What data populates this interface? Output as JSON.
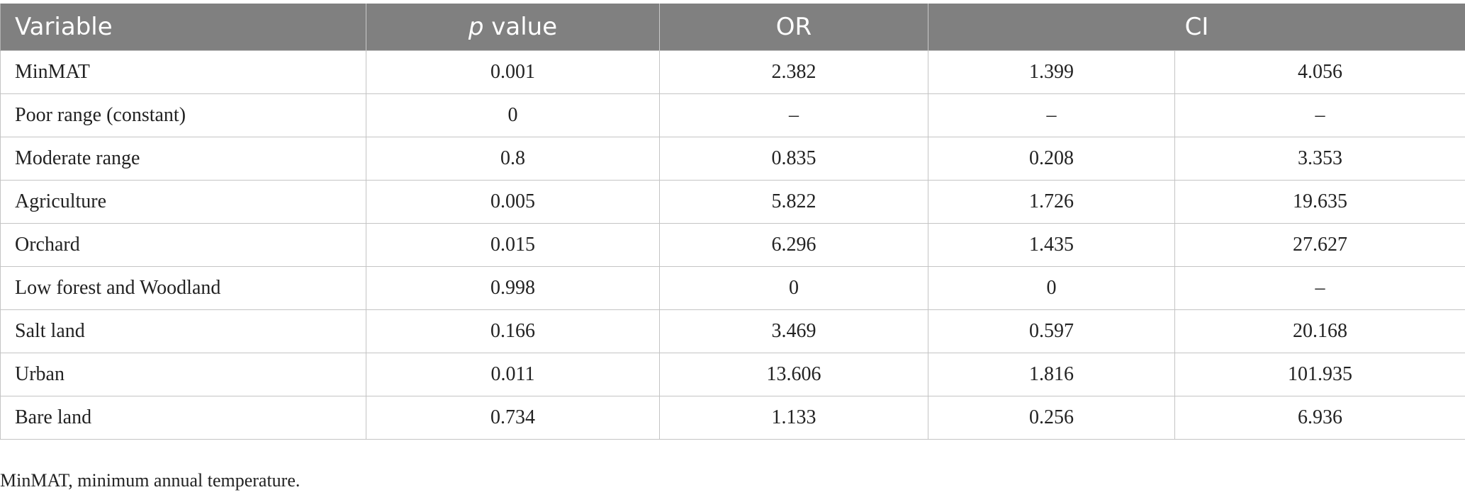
{
  "header": {
    "variable": "Variable",
    "p_italic": "p",
    "p_rest": " value",
    "or": "OR",
    "ci": "CI"
  },
  "rows": [
    {
      "variable": "MinMAT",
      "p": "0.001",
      "or": "2.382",
      "ci_low": "1.399",
      "ci_high": "4.056"
    },
    {
      "variable": "Poor range (constant)",
      "p": "0",
      "or": "–",
      "ci_low": "–",
      "ci_high": "–"
    },
    {
      "variable": "Moderate range",
      "p": "0.8",
      "or": "0.835",
      "ci_low": "0.208",
      "ci_high": "3.353"
    },
    {
      "variable": "Agriculture",
      "p": "0.005",
      "or": "5.822",
      "ci_low": "1.726",
      "ci_high": "19.635"
    },
    {
      "variable": "Orchard",
      "p": "0.015",
      "or": "6.296",
      "ci_low": "1.435",
      "ci_high": "27.627"
    },
    {
      "variable": "Low forest and Woodland",
      "p": "0.998",
      "or": "0",
      "ci_low": "0",
      "ci_high": "–"
    },
    {
      "variable": "Salt land",
      "p": "0.166",
      "or": "3.469",
      "ci_low": "0.597",
      "ci_high": "20.168"
    },
    {
      "variable": "Urban",
      "p": "0.011",
      "or": "13.606",
      "ci_low": "1.816",
      "ci_high": "101.935"
    },
    {
      "variable": "Bare land",
      "p": "0.734",
      "or": "1.133",
      "ci_low": "0.256",
      "ci_high": "6.936"
    }
  ],
  "footnote": "MinMAT, minimum annual temperature."
}
